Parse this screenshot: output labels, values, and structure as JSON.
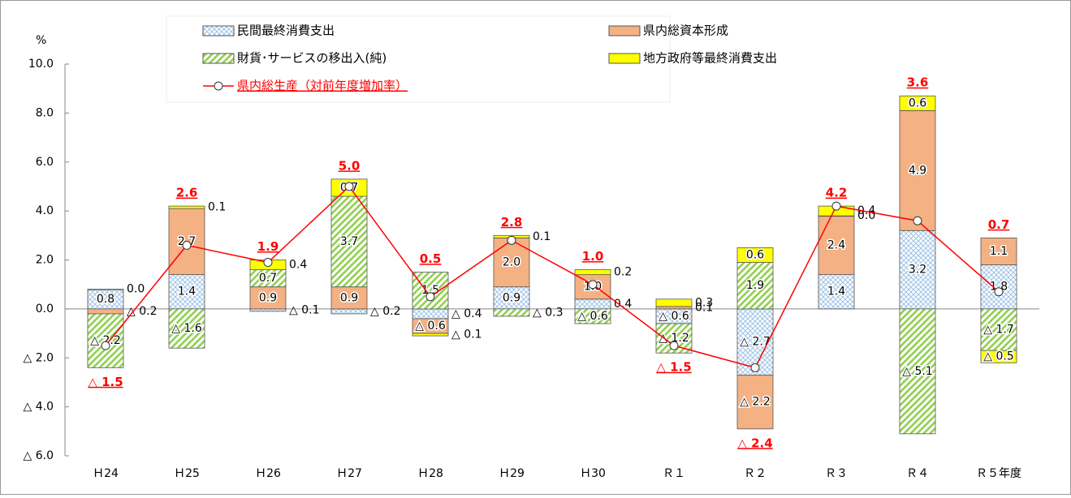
{
  "chart_data": {
    "type": "bar",
    "y_label": "%",
    "categories": [
      "Ｈ24",
      "Ｈ25",
      "Ｈ26",
      "Ｈ27",
      "Ｈ28",
      "Ｈ29",
      "Ｈ30",
      "Ｒ１",
      "Ｒ２",
      "Ｒ３",
      "Ｒ４",
      "Ｒ５年度"
    ],
    "ylim": [
      -6,
      10
    ],
    "yticks": [
      {
        "value": -6,
        "label": "△ 6.0"
      },
      {
        "value": -4,
        "label": "△ 4.0"
      },
      {
        "value": -2,
        "label": "△ 2.0"
      },
      {
        "value": 0,
        "label": "0.0"
      },
      {
        "value": 2,
        "label": "2.0"
      },
      {
        "value": 4,
        "label": "4.0"
      },
      {
        "value": 6,
        "label": "6.0"
      },
      {
        "value": 8,
        "label": "8.0"
      },
      {
        "value": 10,
        "label": "10.0"
      }
    ],
    "series": [
      {
        "name": "民間最終消費支出",
        "color": "#9dc3e6",
        "values": [
          0.8,
          1.4,
          -0.1,
          -0.2,
          -0.4,
          0.9,
          0.4,
          -0.6,
          -2.7,
          1.4,
          3.2,
          1.8
        ],
        "value_labels": [
          "0.8",
          "1.4",
          "△ 0.1",
          "△ 0.2",
          "△ 0.4",
          "0.9",
          "0.4",
          "△ 0.6",
          "△ 2.7",
          "1.4",
          "3.2",
          "1.8"
        ]
      },
      {
        "name": "県内総資本形成",
        "color": "#f4b183",
        "values": [
          -0.2,
          2.7,
          0.9,
          0.9,
          -0.6,
          2.0,
          1.0,
          0.1,
          -2.2,
          2.4,
          4.9,
          1.1
        ],
        "value_labels": [
          "△ 0.2",
          "2.7",
          "0.9",
          "0.9",
          "△ 0.6",
          "2.0",
          "1.0",
          "0.1",
          "△ 2.2",
          "2.4",
          "4.9",
          "1.1"
        ]
      },
      {
        "name": "財貨･サービスの移出入(純)",
        "color": "#92d050",
        "values": [
          -2.2,
          -1.6,
          0.7,
          3.7,
          1.5,
          -0.3,
          -0.6,
          -1.2,
          1.9,
          0.0,
          -5.1,
          -1.7
        ],
        "value_labels": [
          "△ 2.2",
          "△ 1.6",
          "0.7",
          "3.7",
          "1.5",
          "△ 0.3",
          "△ 0.6",
          "△ 1.2",
          "1.9",
          "0.0",
          "△ 5.1",
          "△ 1.7"
        ]
      },
      {
        "name": "地方政府等最終消費支出",
        "color": "#ffff00",
        "values": [
          0.0,
          0.1,
          0.4,
          0.7,
          -0.1,
          0.1,
          0.2,
          0.3,
          0.6,
          0.4,
          0.6,
          -0.5
        ],
        "value_labels": [
          "0.0",
          "0.1",
          "0.4",
          "0.7",
          "△ 0.1",
          "0.1",
          "0.2",
          "0.3",
          "0.6",
          "0.4",
          "0.6",
          "△ 0.5"
        ]
      }
    ],
    "line": {
      "name": "県内総生産（対前年度増加率）",
      "color": "#ff0000",
      "values": [
        -1.5,
        2.6,
        1.9,
        5.0,
        0.5,
        2.8,
        1.0,
        -1.5,
        -2.4,
        4.2,
        3.6,
        0.7
      ],
      "value_labels": [
        "△ 1.5",
        "2.6",
        "1.9",
        "5.0",
        "0.5",
        "2.8",
        "1.0",
        "△ 1.5",
        "△ 2.4",
        "4.2",
        "3.6",
        "0.7"
      ]
    }
  }
}
